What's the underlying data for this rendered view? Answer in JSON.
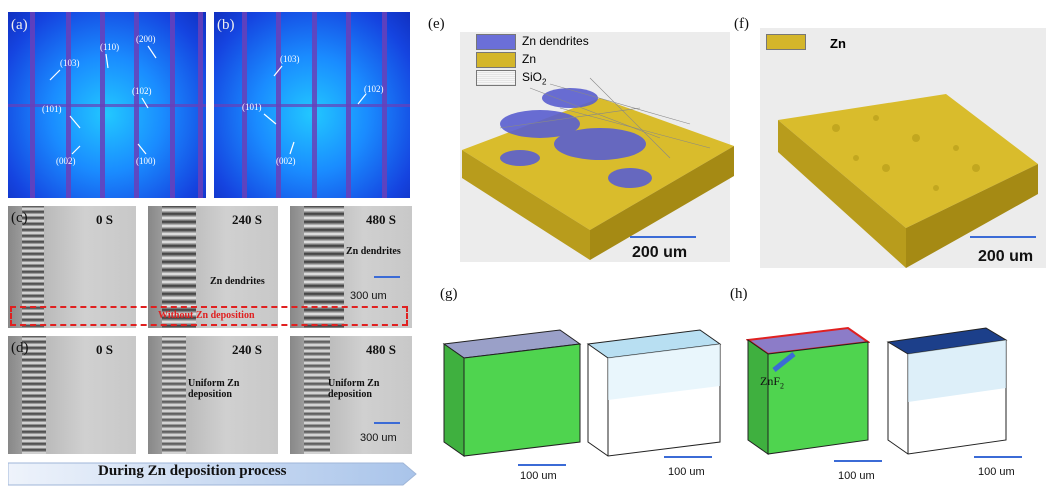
{
  "panels": {
    "a": {
      "label": "(a)",
      "hkl": [
        "(103)",
        "(110)",
        "(200)",
        "(101)",
        "(102)",
        "(002)",
        "(100)"
      ]
    },
    "b": {
      "label": "(b)",
      "hkl": [
        "(103)",
        "(101)",
        "(102)",
        "(002)"
      ]
    },
    "c": {
      "label": "(c)",
      "times": [
        "0 S",
        "240 S",
        "480 S"
      ],
      "notes": [
        "Zn dendrites",
        "Zn dendrites"
      ],
      "scale": "300 um"
    },
    "without": "Without Zn deposition",
    "d": {
      "label": "(d)",
      "times": [
        "0 S",
        "240 S",
        "480 S"
      ],
      "notes": [
        "Uniform Zn deposition",
        "Uniform Zn deposition"
      ],
      "scale": "300 um"
    },
    "process": "During Zn deposition process",
    "e": {
      "label": "(e)",
      "legend": [
        "Zn dendrites",
        "Zn",
        "SiO"
      ],
      "legend_sub": "2",
      "scale": "200 um"
    },
    "f": {
      "label": "(f)",
      "legend": [
        "Zn"
      ],
      "scale": "200 um"
    },
    "g": {
      "label": "(g)",
      "scales": [
        "100 um",
        "100 um"
      ]
    },
    "h": {
      "label": "(h)",
      "annotation": "ZnF",
      "annotation_sub": "2",
      "scales": [
        "100 um",
        "100 um"
      ]
    }
  },
  "colors": {
    "xrd_bg": "#1a8cff",
    "zn": "#d4b62a",
    "dendrite": "#5a5fd0",
    "cube_green": "#4fd44f",
    "scalebar": "#3b6bd6",
    "dashed_red": "#e02020"
  }
}
